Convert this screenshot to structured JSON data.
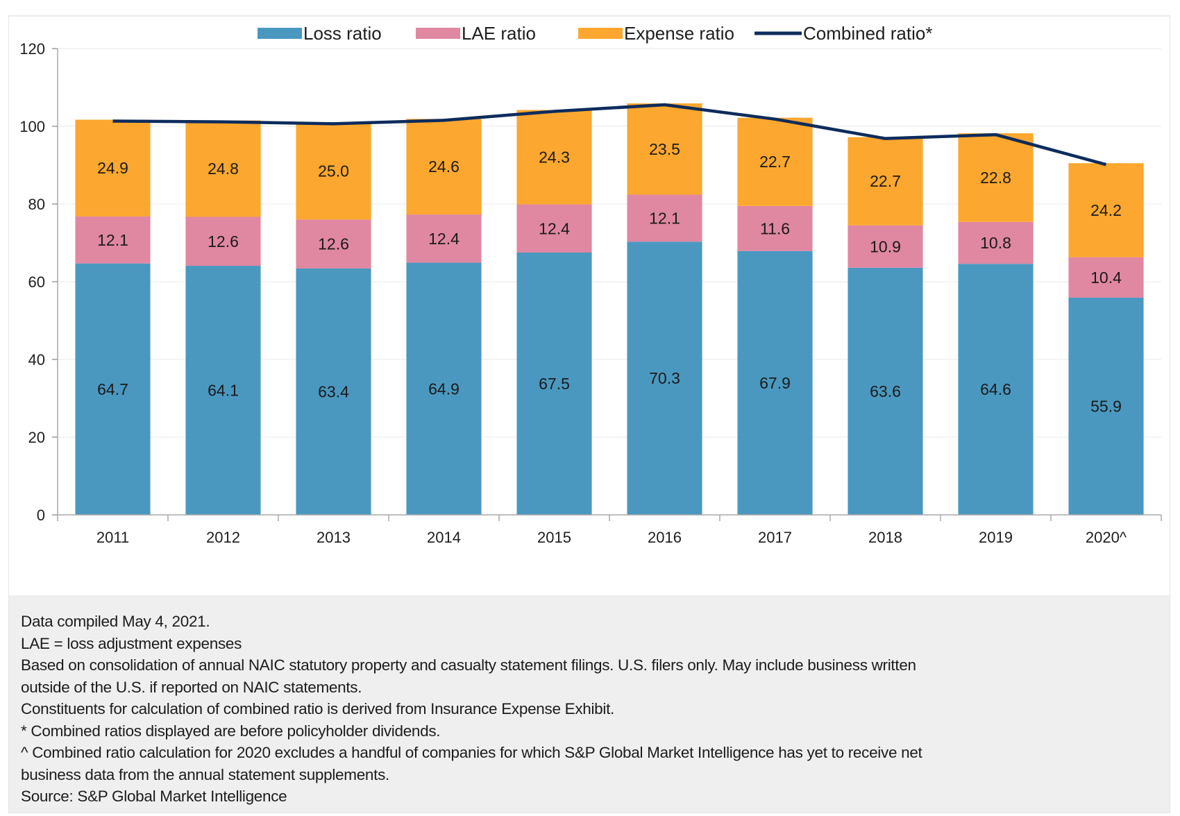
{
  "chart_data": {
    "type": "bar",
    "stacked": true,
    "title": "",
    "xlabel": "",
    "ylabel": "",
    "ylim": [
      0,
      120
    ],
    "yticks": [
      0,
      20,
      40,
      60,
      80,
      100,
      120
    ],
    "grid": true,
    "legend_position": "top-center",
    "categories": [
      "2011",
      "2012",
      "2013",
      "2014",
      "2015",
      "2016",
      "2017",
      "2018",
      "2019",
      "2020^"
    ],
    "series": [
      {
        "name": "Loss ratio",
        "type": "bar",
        "color": "#4a98c0",
        "values": [
          64.7,
          64.1,
          63.4,
          64.9,
          67.5,
          70.3,
          67.9,
          63.6,
          64.6,
          55.9
        ]
      },
      {
        "name": "LAE ratio",
        "type": "bar",
        "color": "#e087a2",
        "values": [
          12.1,
          12.6,
          12.6,
          12.4,
          12.4,
          12.1,
          11.6,
          10.9,
          10.8,
          10.4
        ]
      },
      {
        "name": "Expense ratio",
        "type": "bar",
        "color": "#fca72f",
        "values": [
          24.9,
          24.8,
          25.0,
          24.6,
          24.3,
          23.5,
          22.7,
          22.7,
          22.8,
          24.2
        ]
      },
      {
        "name": "Combined ratio*",
        "type": "line",
        "color": "#0d2c5c",
        "values": [
          101.7,
          101.5,
          101.0,
          101.9,
          104.2,
          105.9,
          102.2,
          97.2,
          98.2,
          90.5
        ]
      }
    ]
  },
  "notes": [
    "Data compiled May 4, 2021.",
    "LAE = loss adjustment expenses",
    "Based on consolidation of annual NAIC statutory property and casualty statement filings. U.S. filers only. May include business written",
    "outside of the U.S. if reported on NAIC statements.",
    "Constituents for calculation of combined ratio is derived from Insurance Expense Exhibit.",
    "* Combined ratios displayed are before policyholder dividends.",
    "^ Combined ratio calculation for 2020 excludes a handful of companies for which S&P Global Market Intelligence has yet to receive net",
    "business data from the annual statement supplements.",
    "Source: S&P Global Market Intelligence"
  ]
}
